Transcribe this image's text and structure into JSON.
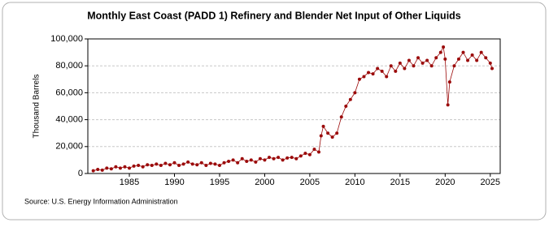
{
  "chart_data": {
    "type": "line",
    "title": "Monthly East Coast (PADD 1) Refinery and Blender Net Input of Other Liquids",
    "y_label": "Thousand Barrels",
    "source": "Source: U.S. Energy Information Administration",
    "color": "#9b0a0a",
    "grid": true,
    "x": [
      1981,
      1981.5,
      1982,
      1982.5,
      1983,
      1983.5,
      1984,
      1984.5,
      1985,
      1985.5,
      1986,
      1986.5,
      1987,
      1987.5,
      1988,
      1988.5,
      1989,
      1989.5,
      1990,
      1990.5,
      1991,
      1991.5,
      1992,
      1992.5,
      1993,
      1993.5,
      1994,
      1994.5,
      1995,
      1995.5,
      1996,
      1996.5,
      1997,
      1997.5,
      1998,
      1998.5,
      1999,
      1999.5,
      2000,
      2000.5,
      2001,
      2001.5,
      2002,
      2002.5,
      2003,
      2003.5,
      2004,
      2004.5,
      2005,
      2005.5,
      2006,
      2006.25,
      2006.5,
      2007,
      2007.5,
      2008,
      2008.5,
      2009,
      2009.5,
      2010,
      2010.5,
      2011,
      2011.5,
      2012,
      2012.5,
      2013,
      2013.5,
      2014,
      2014.5,
      2015,
      2015.5,
      2016,
      2016.5,
      2017,
      2017.5,
      2018,
      2018.5,
      2019,
      2019.5,
      2019.8,
      2020,
      2020.3,
      2020.5,
      2021,
      2021.5,
      2022,
      2022.5,
      2023,
      2023.5,
      2024,
      2024.5,
      2025,
      2025.2
    ],
    "values": [
      2000,
      3000,
      2500,
      4000,
      3500,
      5000,
      4000,
      5000,
      4000,
      5500,
      6000,
      5000,
      6500,
      6000,
      7000,
      6000,
      7500,
      6500,
      8000,
      6000,
      7000,
      8500,
      7000,
      6500,
      8000,
      6000,
      7500,
      7000,
      6000,
      8000,
      9000,
      10000,
      8000,
      11000,
      9000,
      10000,
      8500,
      11000,
      10000,
      12000,
      11000,
      12000,
      10000,
      11500,
      12000,
      11000,
      13000,
      15000,
      14000,
      18000,
      16000,
      28000,
      35000,
      30000,
      27000,
      30000,
      42000,
      50000,
      55000,
      60000,
      70000,
      72000,
      75000,
      74000,
      78000,
      76000,
      72000,
      80000,
      76000,
      82000,
      78000,
      84000,
      80000,
      86000,
      82000,
      84000,
      80000,
      86000,
      90000,
      94000,
      85000,
      51000,
      68000,
      80000,
      85000,
      90000,
      84000,
      88000,
      84000,
      90000,
      86000,
      82000,
      78000
    ],
    "xlim": [
      1980.4,
      2026.1
    ],
    "xticks": [
      1985,
      1990,
      1995,
      2000,
      2005,
      2010,
      2015,
      2020,
      2025
    ],
    "ylim": [
      0,
      100000
    ],
    "yticks": [
      0,
      {
        "value": 20000,
        "label": "20,000"
      },
      {
        "value": 40000,
        "label": "40,000"
      },
      {
        "value": 60000,
        "label": "60,000"
      },
      {
        "value": 80000,
        "label": "80,000"
      },
      {
        "value": 100000,
        "label": "100,000"
      }
    ]
  }
}
